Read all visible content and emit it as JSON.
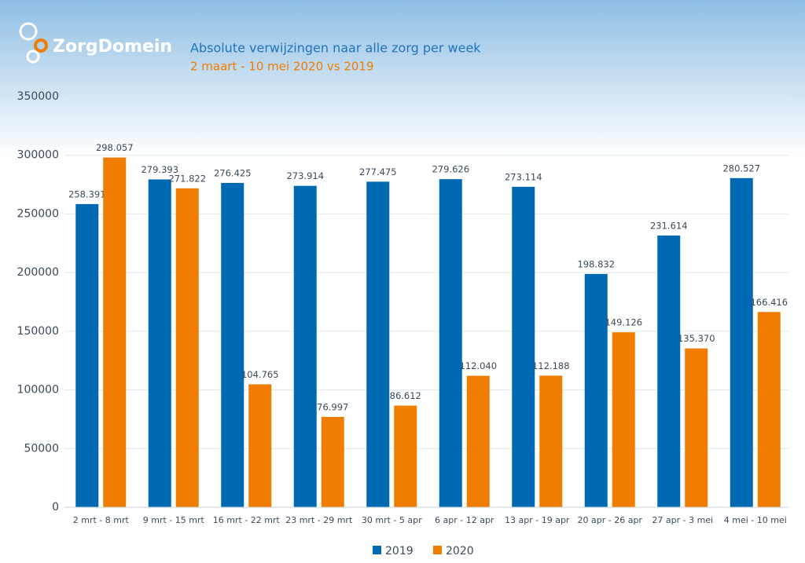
{
  "logo": "ZorgDomein",
  "chart_data": {
    "type": "bar",
    "title": "Absolute verwijzingen naar alle zorg per week",
    "subtitle": "2 maart - 10 mei 2020 vs 2019",
    "categories": [
      "2 mrt - 8 mrt",
      "9 mrt - 15 mrt",
      "16 mrt - 22 mrt",
      "23 mrt - 29 mrt",
      "30 mrt - 5 apr",
      "6 apr - 12 apr",
      "13 apr - 19 apr",
      "20 apr - 26 apr",
      "27 apr - 3 mei",
      "4 mei - 10 mei"
    ],
    "series": [
      {
        "name": "2019",
        "color": "#0069b4",
        "values": [
          258391,
          279393,
          276425,
          273914,
          277475,
          279626,
          273114,
          198832,
          231614,
          280527
        ],
        "value_labels": [
          "258.391",
          "279.393",
          "276.425",
          "273.914",
          "277.475",
          "279.626",
          "273.114",
          "198.832",
          "231.614",
          "280.527"
        ]
      },
      {
        "name": "2020",
        "color": "#f07d00",
        "values": [
          298057,
          271822,
          104765,
          76997,
          86612,
          112040,
          112188,
          149126,
          135370,
          166416
        ],
        "value_labels": [
          "298.057",
          "271.822",
          "104.765",
          "76.997",
          "86.612",
          "112.040",
          "112.188",
          "149.126",
          "135.370",
          "166.416"
        ]
      }
    ],
    "ylim": [
      0,
      350000
    ],
    "yticks": [
      0,
      50000,
      100000,
      150000,
      200000,
      250000,
      300000,
      350000
    ],
    "grid": true,
    "legend": "bottom"
  }
}
